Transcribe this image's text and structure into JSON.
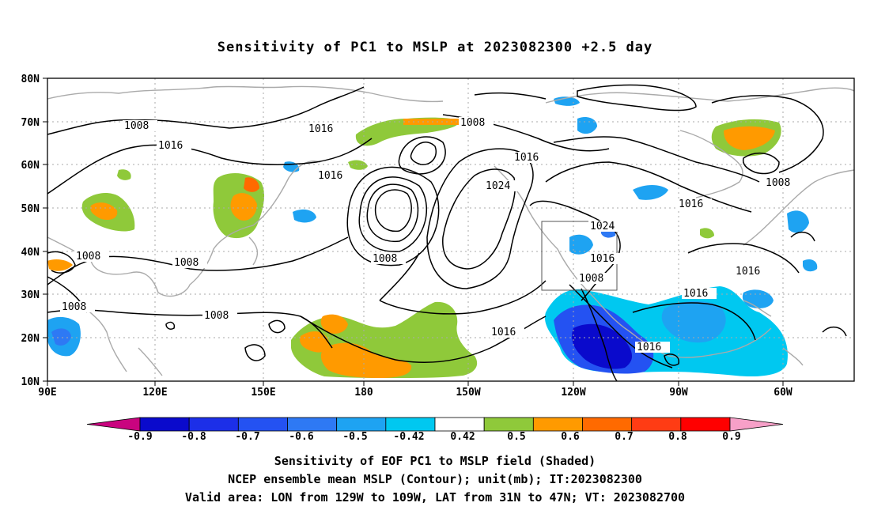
{
  "title": "Sensitivity of PC1 to MSLP at 2023082300 +2.5 day",
  "axes": {
    "lat_labels": [
      "80N",
      "70N",
      "60N",
      "50N",
      "40N",
      "30N",
      "20N",
      "10N"
    ],
    "lon_labels": [
      "90E",
      "120E",
      "150E",
      "180",
      "150W",
      "120W",
      "90W",
      "60W"
    ]
  },
  "contour_labels": [
    {
      "id": "c1",
      "text": "1008"
    },
    {
      "id": "c2",
      "text": "1016"
    },
    {
      "id": "c3",
      "text": "1016"
    },
    {
      "id": "c4",
      "text": "1008"
    },
    {
      "id": "c5",
      "text": "1016"
    },
    {
      "id": "c6",
      "text": "1016"
    },
    {
      "id": "c7",
      "text": "1024"
    },
    {
      "id": "c8",
      "text": "1008"
    },
    {
      "id": "c9",
      "text": "1008"
    },
    {
      "id": "c10",
      "text": "1008"
    },
    {
      "id": "c11",
      "text": "1008"
    },
    {
      "id": "c12",
      "text": "1008"
    },
    {
      "id": "c13",
      "text": "1016"
    },
    {
      "id": "c14",
      "text": "1008"
    },
    {
      "id": "c15",
      "text": "1016"
    },
    {
      "id": "c16",
      "text": "1024"
    },
    {
      "id": "c17",
      "text": "1016"
    },
    {
      "id": "c18",
      "text": "1008"
    },
    {
      "id": "c19",
      "text": "1016"
    },
    {
      "id": "c20",
      "text": "1016"
    },
    {
      "id": "c21",
      "text": "1016"
    }
  ],
  "colorbar": {
    "colors": [
      "#c9047f",
      "#0a0acc",
      "#1c2fe8",
      "#2452f2",
      "#2e79f4",
      "#1ea3f2",
      "#00c8f0",
      "#ffffff",
      "#8fc93a",
      "#ff9a00",
      "#ff6a00",
      "#ff3c14",
      "#ff0000",
      "#f7a0c8"
    ],
    "labels": [
      "-0.9",
      "-0.8",
      "-0.7",
      "-0.6",
      "-0.5",
      "-0.42",
      "0.42",
      "0.5",
      "0.6",
      "0.7",
      "0.8",
      "0.9"
    ]
  },
  "captions": {
    "line1": "Sensitivity of EOF PC1 to MSLP field (Shaded)",
    "line2": "NCEP ensemble mean MSLP (Contour); unit(mb); IT:2023082300",
    "line3": "Valid area: LON from 129W to 109W, LAT from 31N to 47N; VT: 2023082700"
  }
}
